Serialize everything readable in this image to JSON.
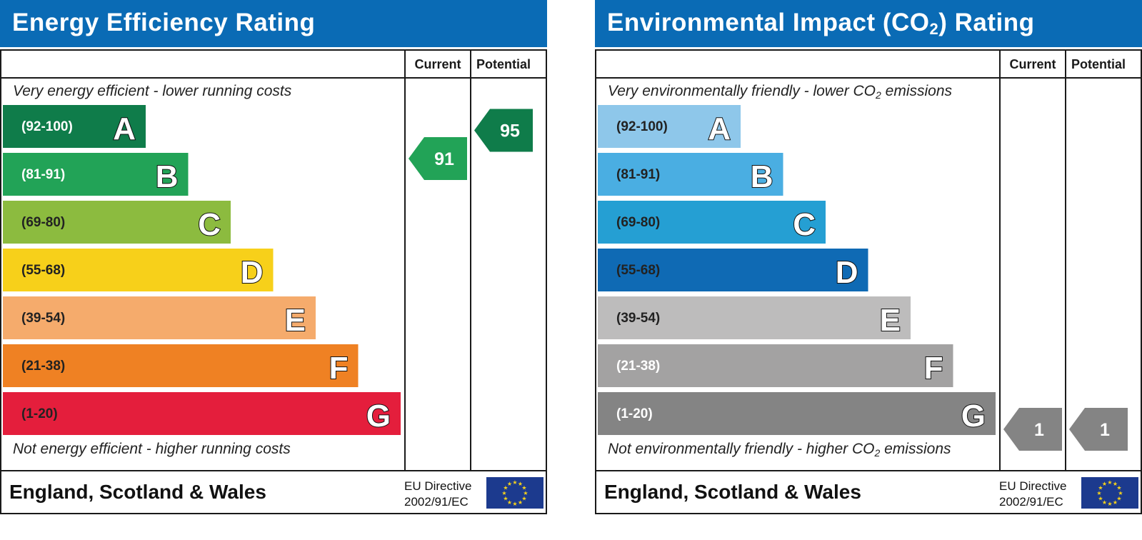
{
  "chart_data": [
    {
      "type": "bar",
      "title": "Energy Efficiency Rating",
      "columns": [
        "Current",
        "Potential"
      ],
      "top_note": "Very energy efficient - lower running costs",
      "bottom_note": "Not energy efficient - higher running costs",
      "categories": [
        "A",
        "B",
        "C",
        "D",
        "E",
        "F",
        "G"
      ],
      "ranges": [
        "(92-100)",
        "(81-91)",
        "(69-80)",
        "(55-68)",
        "(39-54)",
        "(21-38)",
        "(1-20)"
      ],
      "band_colors": [
        "#0f7c4a",
        "#22a357",
        "#8cbb3f",
        "#f7d01a",
        "#f5ab6c",
        "#ef8123",
        "#e41e3c"
      ],
      "range_text_colors": [
        "#ffffff",
        "#ffffff",
        "#222222",
        "#222222",
        "#222222",
        "#222222",
        "#222222"
      ],
      "current": {
        "value": 91,
        "band": "B",
        "color": "#22a357"
      },
      "potential": {
        "value": 95,
        "band": "A",
        "color": "#0f7c4a"
      },
      "footer": "England, Scotland & Wales",
      "directive": [
        "EU Directive",
        "2002/91/EC"
      ]
    },
    {
      "type": "bar",
      "title": "Environmental Impact (CO2) Rating",
      "columns": [
        "Current",
        "Potential"
      ],
      "top_note": "Very environmentally friendly - lower CO2 emissions",
      "bottom_note": "Not environmentally friendly - higher CO2 emissions",
      "categories": [
        "A",
        "B",
        "C",
        "D",
        "E",
        "F",
        "G"
      ],
      "ranges": [
        "(92-100)",
        "(81-91)",
        "(69-80)",
        "(55-68)",
        "(39-54)",
        "(21-38)",
        "(1-20)"
      ],
      "band_colors": [
        "#8ec7ea",
        "#4aaee2",
        "#259fd3",
        "#0f6ab4",
        "#bdbcbc",
        "#a3a2a2",
        "#848484"
      ],
      "range_text_colors": [
        "#222222",
        "#222222",
        "#222222",
        "#222222",
        "#222222",
        "#ffffff",
        "#ffffff"
      ],
      "current": {
        "value": 1,
        "band": "G",
        "color": "#848484"
      },
      "potential": {
        "value": 1,
        "band": "G",
        "color": "#848484"
      },
      "footer": "England, Scotland & Wales",
      "directive": [
        "EU Directive",
        "2002/91/EC"
      ]
    }
  ]
}
